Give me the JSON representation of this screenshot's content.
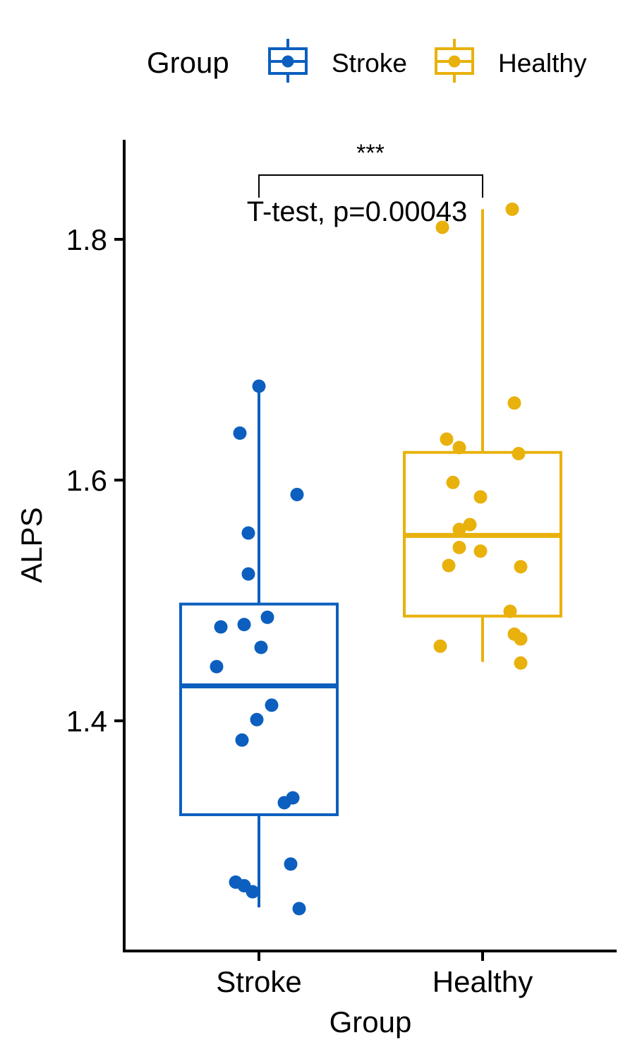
{
  "chart_data": {
    "type": "box",
    "xlabel": "Group",
    "ylabel": "ALPS",
    "categories": [
      "Stroke",
      "Healthy"
    ],
    "y_ticks": [
      1.4,
      1.6,
      1.8
    ],
    "y_tick_labels": [
      "1.4",
      "1.6",
      "1.8"
    ],
    "legend": {
      "title": "Group",
      "placement": "top",
      "entries": [
        "Stroke",
        "Healthy"
      ]
    },
    "annotation": {
      "significance": "***",
      "test_label": "T-test, p=0.00043"
    },
    "series": [
      {
        "name": "Stroke",
        "color": "#0c5fbe",
        "box": {
          "min": 1.245,
          "q1": 1.322,
          "median": 1.429,
          "q3": 1.497,
          "max": 1.678
        },
        "points": [
          1.678,
          1.639,
          1.588,
          1.556,
          1.522,
          1.486,
          1.48,
          1.478,
          1.461,
          1.445,
          1.413,
          1.401,
          1.384,
          1.336,
          1.332,
          1.281,
          1.266,
          1.263,
          1.258,
          1.244
        ],
        "jitter": [
          0.0,
          -0.09,
          0.18,
          -0.05,
          -0.05,
          0.04,
          -0.07,
          -0.18,
          0.01,
          -0.2,
          0.06,
          -0.01,
          -0.08,
          0.16,
          0.12,
          0.15,
          -0.11,
          -0.07,
          -0.03,
          0.19
        ]
      },
      {
        "name": "Healthy",
        "color": "#e8b10c",
        "box": {
          "min": 1.449,
          "q1": 1.487,
          "median": 1.554,
          "q3": 1.623,
          "max": 1.825
        },
        "points": [
          1.825,
          1.81,
          1.664,
          1.634,
          1.627,
          1.622,
          1.598,
          1.586,
          1.563,
          1.559,
          1.544,
          1.541,
          1.529,
          1.528,
          1.491,
          1.472,
          1.468,
          1.462,
          1.448
        ],
        "jitter": [
          0.14,
          -0.19,
          0.15,
          -0.17,
          -0.11,
          0.17,
          -0.14,
          -0.01,
          -0.06,
          -0.11,
          -0.11,
          -0.01,
          -0.16,
          0.18,
          0.13,
          0.15,
          0.18,
          -0.2,
          0.18
        ]
      }
    ]
  }
}
